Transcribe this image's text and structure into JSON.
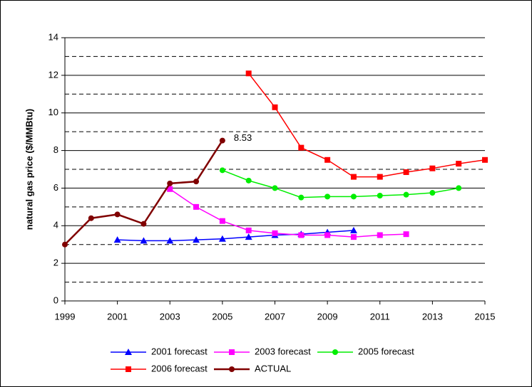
{
  "chart_data": {
    "type": "line",
    "y_label": "natural gas price ($/MMBtu)",
    "x": [
      1999,
      2000,
      2001,
      2002,
      2003,
      2004,
      2005,
      2006,
      2007,
      2008,
      2009,
      2010,
      2011,
      2012,
      2013,
      2014,
      2015
    ],
    "xlim": [
      1999,
      2015
    ],
    "xticks": [
      1999,
      2001,
      2003,
      2005,
      2007,
      2009,
      2011,
      2013,
      2015
    ],
    "ylim": [
      0,
      14
    ],
    "yticks": [
      0,
      2,
      4,
      6,
      8,
      10,
      12,
      14
    ],
    "grid": true,
    "minor_grid": [
      1,
      3,
      5,
      7,
      9,
      11,
      13
    ],
    "legend": "bottom",
    "series": [
      {
        "name": "2001 forecast",
        "color": "#0000ff",
        "marker": "triangle",
        "values": [
          null,
          null,
          3.25,
          3.2,
          3.2,
          3.25,
          3.3,
          3.4,
          3.5,
          3.55,
          3.65,
          3.75,
          null,
          null,
          null,
          null,
          null
        ]
      },
      {
        "name": "2003 forecast",
        "color": "#ff00ff",
        "marker": "square",
        "values": [
          null,
          null,
          null,
          null,
          5.95,
          5.0,
          4.25,
          3.75,
          3.6,
          3.5,
          3.5,
          3.4,
          3.5,
          3.55,
          null,
          null,
          null
        ]
      },
      {
        "name": "2005 forecast",
        "color": "#00ee00",
        "marker": "circle",
        "values": [
          null,
          null,
          null,
          null,
          null,
          null,
          6.95,
          6.4,
          6.0,
          5.5,
          5.55,
          5.55,
          5.6,
          5.65,
          5.75,
          6.0,
          null
        ]
      },
      {
        "name": "2006 forecast",
        "color": "#ff0000",
        "marker": "square",
        "values": [
          null,
          null,
          null,
          null,
          null,
          null,
          null,
          12.1,
          10.3,
          8.15,
          7.5,
          6.6,
          6.6,
          6.85,
          7.05,
          7.3,
          7.5
        ]
      },
      {
        "name": "ACTUAL",
        "color": "#800000",
        "marker": "circle",
        "values": [
          3.0,
          4.4,
          4.6,
          4.1,
          6.25,
          6.35,
          8.53,
          null,
          null,
          null,
          null,
          null,
          null,
          null,
          null,
          null,
          null
        ],
        "value_labels": [
          null,
          null,
          null,
          null,
          null,
          null,
          "8.53",
          null,
          null,
          null,
          null,
          null,
          null,
          null,
          null,
          null,
          null
        ]
      }
    ]
  }
}
